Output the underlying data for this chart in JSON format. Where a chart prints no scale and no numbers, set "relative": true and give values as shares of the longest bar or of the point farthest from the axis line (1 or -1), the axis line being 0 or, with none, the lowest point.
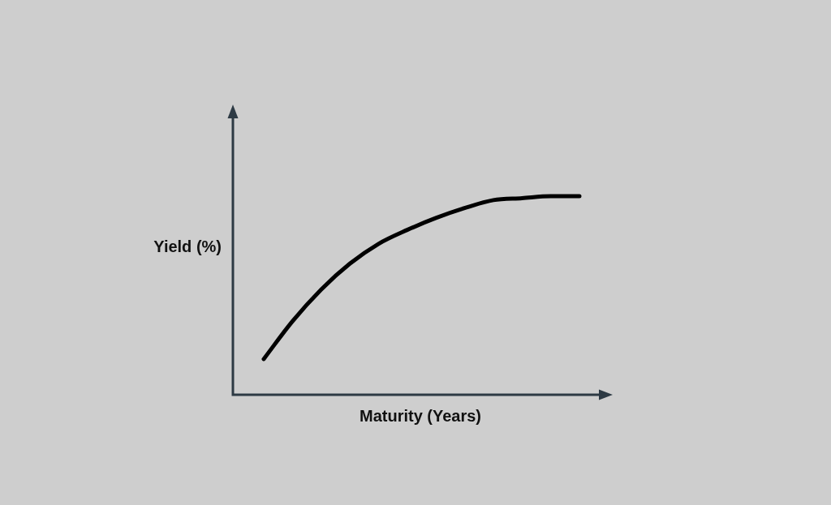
{
  "chart_data": {
    "type": "line",
    "xlabel": "Maturity (Years)",
    "ylabel": "Yield (%)",
    "categories": [
      null,
      null,
      null,
      null,
      null,
      null,
      null,
      null,
      null,
      null,
      null,
      null
    ],
    "values": [
      0.18,
      0.37,
      0.53,
      0.66,
      0.76,
      0.83,
      0.89,
      0.94,
      0.98,
      0.99,
      1,
      1
    ],
    "color": "#000000",
    "relative": true,
    "marker": "none",
    "line_style": "solid"
  }
}
